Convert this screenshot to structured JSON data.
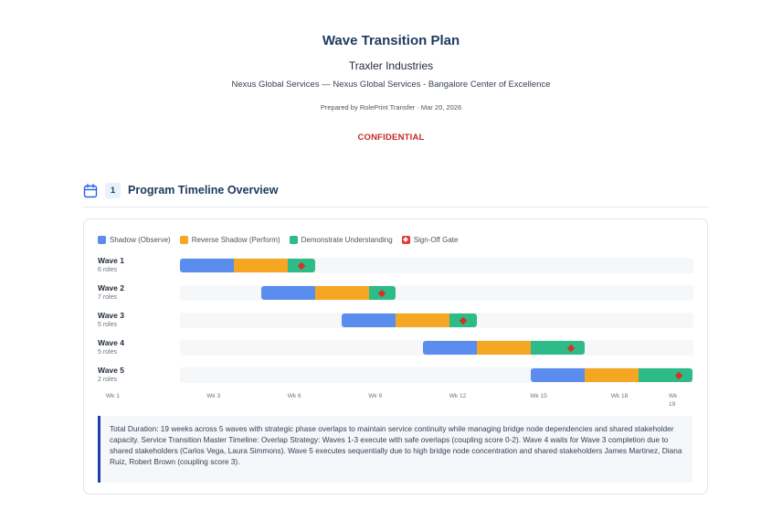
{
  "header": {
    "title": "Wave Transition Plan",
    "company": "Traxler Industries",
    "subtitle": "Nexus Global Services — Nexus Global Services - Bangalore Center of Excellence",
    "prepared": "Prepared by RolePrint Transfer · Mar 20, 2026",
    "confidential": "CONFIDENTIAL"
  },
  "section": {
    "icon": "calendar-icon",
    "number": "1",
    "title": "Program Timeline Overview"
  },
  "legend": [
    {
      "label": "Shadow (Observe)",
      "color": "#5b8def"
    },
    {
      "label": "Reverse Shadow (Perform)",
      "color": "#f5a623"
    },
    {
      "label": "Demonstrate Understanding",
      "color": "#2dbb87"
    },
    {
      "label": "Sign-Off Gate",
      "color": "#e53935"
    }
  ],
  "timeline": {
    "total_weeks": 19,
    "ticks": [
      {
        "label": "Wk 1",
        "week": 1
      },
      {
        "label": "Wk 3",
        "week": 3
      },
      {
        "label": "Wk 6",
        "week": 6
      },
      {
        "label": "Wk 9",
        "week": 9
      },
      {
        "label": "Wk 12",
        "week": 12
      },
      {
        "label": "Wk 15",
        "week": 15
      },
      {
        "label": "Wk 18",
        "week": 18
      },
      {
        "label": "Wk 19",
        "week": 19
      }
    ],
    "waves": [
      {
        "name": "Wave 1",
        "roles": "6 roles",
        "shadow": [
          1,
          3
        ],
        "reverse": [
          3,
          5
        ],
        "demo": [
          5,
          6
        ],
        "gate": 5.5
      },
      {
        "name": "Wave 2",
        "roles": "7 roles",
        "shadow": [
          4,
          6
        ],
        "reverse": [
          6,
          8
        ],
        "demo": [
          8,
          9
        ],
        "gate": 8.5
      },
      {
        "name": "Wave 3",
        "roles": "5 roles",
        "shadow": [
          7,
          9
        ],
        "reverse": [
          9,
          11
        ],
        "demo": [
          11,
          12
        ],
        "gate": 11.5
      },
      {
        "name": "Wave 4",
        "roles": "5 roles",
        "shadow": [
          10,
          12
        ],
        "reverse": [
          12,
          14
        ],
        "demo": [
          14,
          16
        ],
        "gate": 15.5
      },
      {
        "name": "Wave 5",
        "roles": "2 roles",
        "shadow": [
          14,
          16
        ],
        "reverse": [
          16,
          18
        ],
        "demo": [
          18,
          20
        ],
        "gate": 19.5
      }
    ]
  },
  "note": "Total Duration: 19 weeks across 5 waves with strategic phase overlaps to maintain service continuity while managing bridge node dependencies and shared stakeholder capacity. Service Transition Master Timeline: Overlap Strategy: Waves 1-3 execute with safe overlaps (coupling score 0-2). Wave 4 waits for Wave 3 completion due to shared stakeholders (Carlos Vega, Laura Simmons). Wave 5 executes sequentially due to high bridge node concentration and shared stakeholders James Martinez, Diana Ruiz, Robert Brown (coupling score 3)."
}
